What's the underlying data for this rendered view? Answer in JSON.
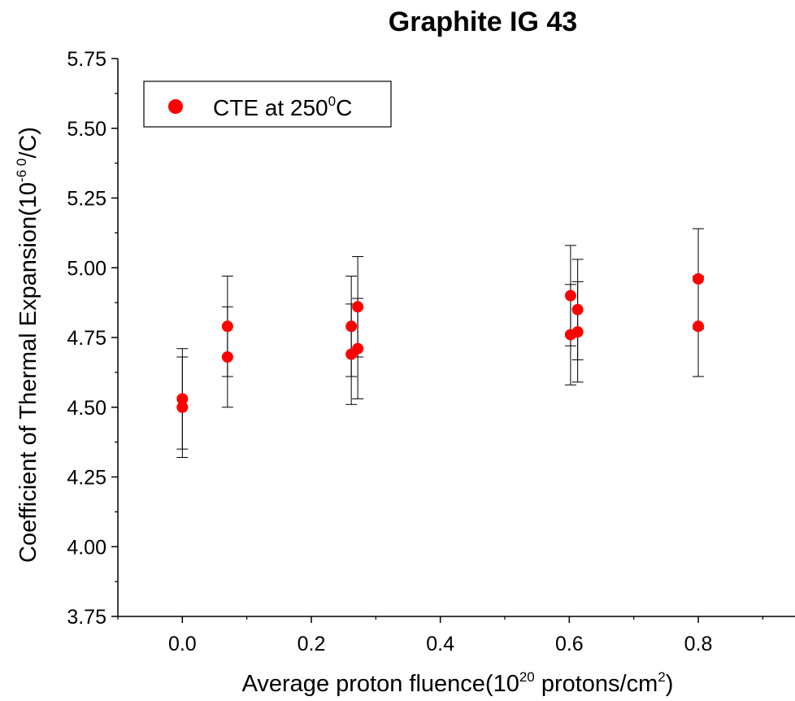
{
  "chart_data": {
    "type": "scatter",
    "title": "Graphite IG 43",
    "xlabel": {
      "main": "Average proton fluence(10",
      "sup1": "20",
      "mid": " protons/cm",
      "sup2": "2",
      "end": ")"
    },
    "ylabel": {
      "main": "Coefficient of Thermal Expansion(10",
      "sup1": "-6 0",
      "end": "/C)"
    },
    "xlim": [
      -0.1,
      0.95
    ],
    "ylim": [
      3.75,
      5.75
    ],
    "xticks": [
      0.0,
      0.2,
      0.4,
      0.6,
      0.8
    ],
    "xtick_labels": [
      "0.0",
      "0.2",
      "0.4",
      "0.6",
      "0.8"
    ],
    "yticks": [
      3.75,
      4.0,
      4.25,
      4.5,
      4.75,
      5.0,
      5.25,
      5.5,
      5.75
    ],
    "ytick_labels": [
      "3.75",
      "4.00",
      "4.25",
      "4.50",
      "4.75",
      "5.00",
      "5.25",
      "5.50",
      "5.75"
    ],
    "grid": false,
    "legend_position": "top-left",
    "series": [
      {
        "name": "CTE at 250⁰C",
        "legend_main": "CTE at 250",
        "legend_sup": "0",
        "legend_end": "C",
        "color": "#ff0000",
        "points": [
          {
            "x": 0.0,
            "y": 4.53,
            "err": 0.18
          },
          {
            "x": 0.0,
            "y": 4.5,
            "err": 0.18
          },
          {
            "x": 0.07,
            "y": 4.79,
            "err": 0.18
          },
          {
            "x": 0.07,
            "y": 4.68,
            "err": 0.18
          },
          {
            "x": 0.262,
            "y": 4.79,
            "err": 0.18
          },
          {
            "x": 0.262,
            "y": 4.69,
            "err": 0.18
          },
          {
            "x": 0.272,
            "y": 4.86,
            "err": 0.18
          },
          {
            "x": 0.272,
            "y": 4.71,
            "err": 0.18
          },
          {
            "x": 0.602,
            "y": 4.9,
            "err": 0.18
          },
          {
            "x": 0.602,
            "y": 4.76,
            "err": 0.18
          },
          {
            "x": 0.613,
            "y": 4.85,
            "err": 0.18
          },
          {
            "x": 0.613,
            "y": 4.77,
            "err": 0.18
          },
          {
            "x": 0.8,
            "y": 4.96,
            "err": 0.18
          },
          {
            "x": 0.8,
            "y": 4.79,
            "err": 0.18
          }
        ]
      }
    ]
  }
}
